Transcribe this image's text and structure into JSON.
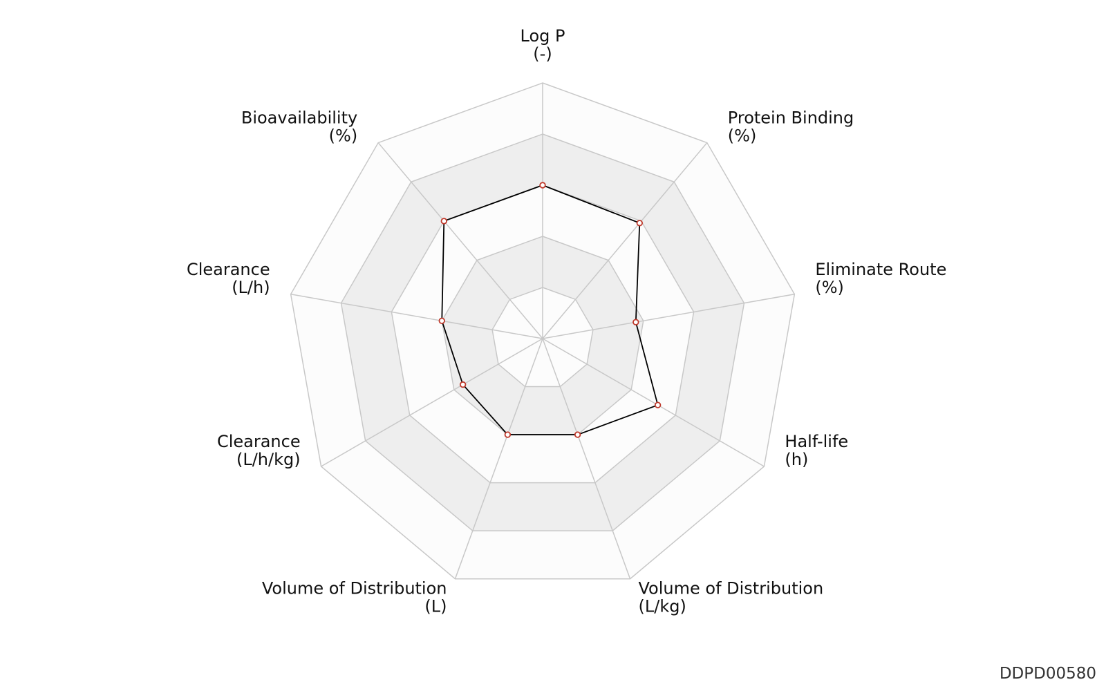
{
  "chart_data": {
    "type": "radar",
    "axes": [
      {
        "name": "Log P",
        "unit": "(-)"
      },
      {
        "name": "Protein Binding",
        "unit": "(%)"
      },
      {
        "name": "Eliminate Route",
        "unit": "(%)"
      },
      {
        "name": "Half-life",
        "unit": "(h)"
      },
      {
        "name": "Volume of Distribution",
        "unit": "(L/kg)"
      },
      {
        "name": "Volume of Distribution",
        "unit": "(L)"
      },
      {
        "name": "Clearance",
        "unit": "(L/h/kg)"
      },
      {
        "name": "Clearance",
        "unit": "(L/h)"
      },
      {
        "name": "Bioavailability",
        "unit": "(%)"
      }
    ],
    "levels": 5,
    "range": [
      0,
      1
    ],
    "values": [
      0.6,
      0.59,
      0.37,
      0.52,
      0.4,
      0.4,
      0.36,
      0.4,
      0.6
    ],
    "colors": {
      "band_dark": "#eeeeee",
      "band_light": "#fcfcfc",
      "grid": "#c8c8c8",
      "line": "#000000",
      "point_stroke": "#c0392b",
      "point_fill": "#ffffff"
    }
  },
  "footer": {
    "id": "DDPD00580"
  }
}
